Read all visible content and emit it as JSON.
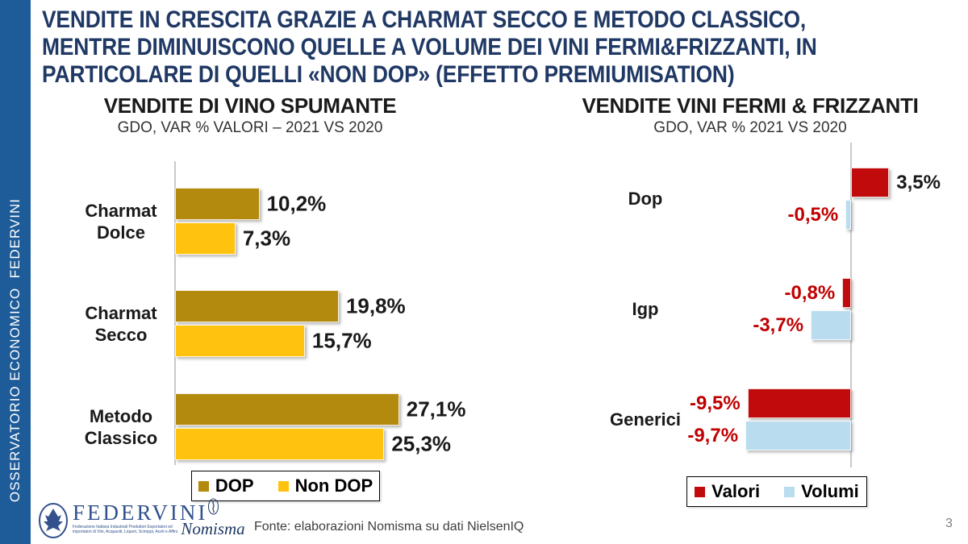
{
  "slide": {
    "sidebar_text": "OSSERVATORIO ECONOMICO  FEDERVINI",
    "title_lines": [
      "VENDITE IN CRESCITA GRAZIE A CHARMAT SECCO E METODO CLASSICO,",
      "MENTRE DIMINUISCONO QUELLE A VOLUME DEI VINI FERMI&FRIZZANTI, IN",
      "PARTICOLARE DI QUELLI «NON DOP» (EFFETTO PREMIUMISATION)"
    ],
    "page_number": "3",
    "footer": {
      "source": "Fonte: elaborazioni Nomisma su dati NielsenIQ",
      "federvini": {
        "name": "FEDERVINI",
        "tagline_lines": [
          "Federazione Italiana Industriali Produttori Esportatori ed",
          "importatori di Vini, Acquaviti, Liquori, Sciroppi, Aceti e Affini"
        ]
      },
      "nomisma": "Nomisma"
    }
  },
  "colors": {
    "sidebar_blue": "#1D5B99",
    "title_navy": "#1F3864",
    "dop_gold": "#B3890E",
    "non_dop_yellow": "#FFC20E",
    "valori_red": "#C00A0C",
    "volumi_light_blue": "#B9DCEE",
    "negative_label": "#C00000",
    "axis_gray": "#C9C9C9"
  },
  "chart_data": [
    {
      "id": "spumante",
      "type": "bar",
      "orientation": "horizontal",
      "title": "VENDITE DI VINO SPUMANTE",
      "subtitle": "GDO, VAR % VALORI – 2021 VS 2020",
      "categories": [
        "Charmat Dolce",
        "Charmat Secco",
        "Metodo Classico"
      ],
      "category_lines": [
        [
          "Charmat",
          "Dolce"
        ],
        [
          "Charmat",
          "Secco"
        ],
        [
          "Metodo",
          "Classico"
        ]
      ],
      "series": [
        {
          "name": "DOP",
          "color": "#B3890E",
          "values": [
            10.2,
            19.8,
            27.1
          ],
          "labels": [
            "10,2%",
            "19,8%",
            "27,1%"
          ]
        },
        {
          "name": "Non DOP",
          "color": "#FFC20E",
          "values": [
            7.3,
            15.7,
            25.3
          ],
          "labels": [
            "7,3%",
            "15,7%",
            "25,3%"
          ]
        }
      ],
      "xlim": [
        0,
        30
      ],
      "grid": false,
      "legend_position": "bottom"
    },
    {
      "id": "fermi-frizzanti",
      "type": "bar",
      "orientation": "horizontal",
      "title": "VENDITE VINI FERMI & FRIZZANTI",
      "subtitle": "GDO, VAR % 2021 VS 2020",
      "categories": [
        "Dop",
        "Igp",
        "Generici"
      ],
      "category_lines": [
        [
          "Dop"
        ],
        [
          "Igp"
        ],
        [
          "Generici"
        ]
      ],
      "series": [
        {
          "name": "Valori",
          "color": "#C00A0C",
          "values": [
            3.5,
            -0.8,
            -9.5
          ],
          "labels": [
            "3,5%",
            "-0,8%",
            "-9,5%"
          ]
        },
        {
          "name": "Volumi",
          "color": "#B9DCEE",
          "values": [
            -0.5,
            -3.7,
            -9.7
          ],
          "labels": [
            "-0,5%",
            "-3,7%",
            "-9,7%"
          ]
        }
      ],
      "xlim": [
        -10,
        4
      ],
      "grid": false,
      "legend_position": "bottom"
    }
  ]
}
